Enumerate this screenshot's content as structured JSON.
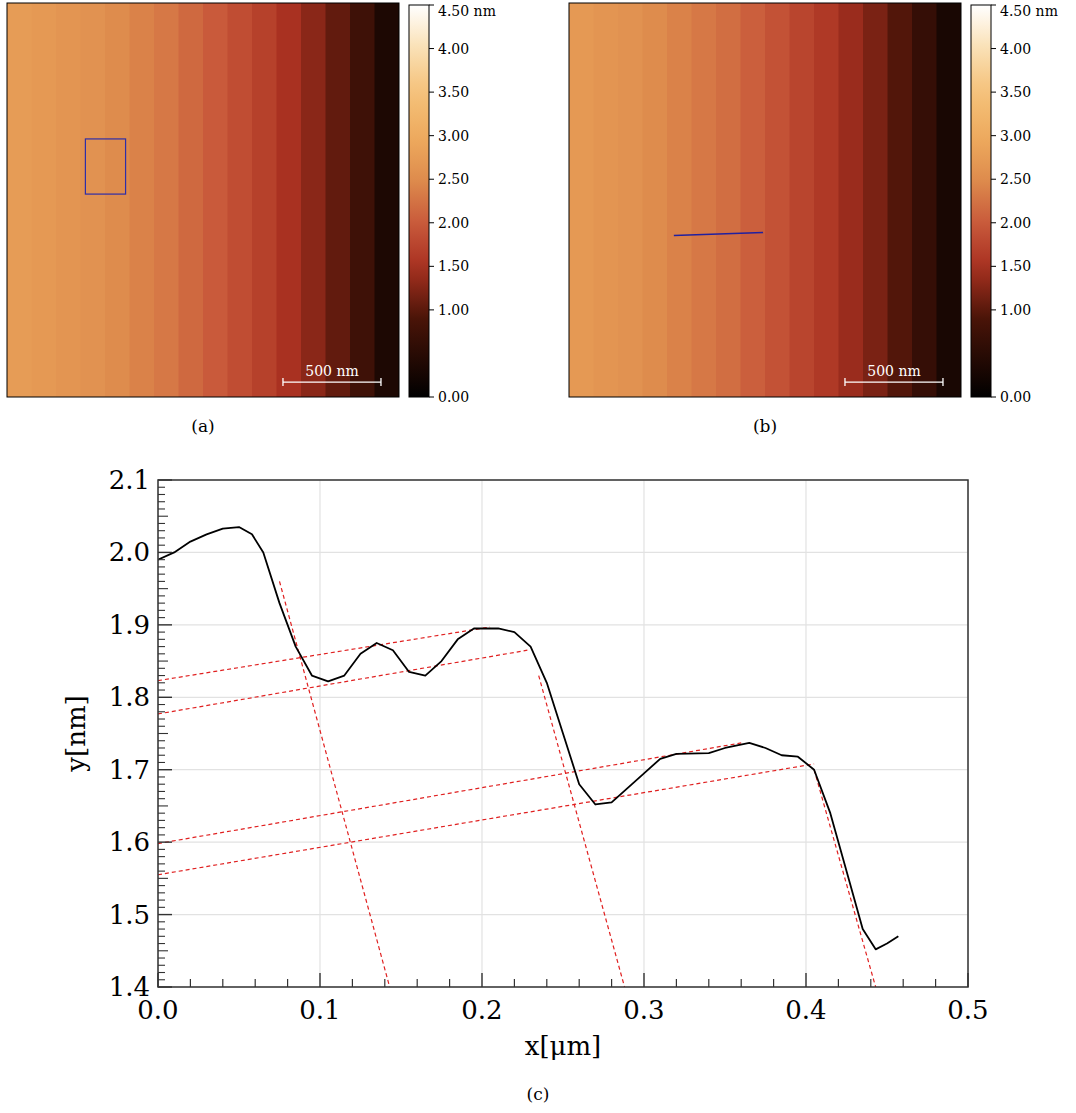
{
  "chart_data": [
    {
      "type": "heatmap",
      "label": "(a)",
      "xlim": [
        0,
        2000
      ],
      "ylim": [
        0,
        2000
      ],
      "cells": [
        [
          2.75,
          2.7,
          2.65,
          2.6,
          2.5,
          2.4,
          2.3,
          2.15,
          2.0,
          1.85,
          1.7,
          1.5,
          1.3,
          1.05,
          0.75,
          0.35
        ]
      ],
      "colorbar": {
        "range": [
          0,
          4.5
        ],
        "ticks": [
          {
            "value": 4.5,
            "label": "4.50 nm"
          },
          {
            "value": 4,
            "label": "4.00"
          },
          {
            "value": 3.5,
            "label": "3.50"
          },
          {
            "value": 3,
            "label": "3.00"
          },
          {
            "value": 2.5,
            "label": "2.50"
          },
          {
            "value": 2,
            "label": "2.00"
          },
          {
            "value": 1.5,
            "label": "1.50"
          },
          {
            "value": 1,
            "label": "1.00"
          },
          {
            "value": 0,
            "label": "0.00"
          }
        ]
      },
      "scale_bar": {
        "value": 500,
        "label": "500 nm"
      },
      "roi": {
        "x": [
          400,
          605
        ],
        "y": [
          690,
          970
        ],
        "color": "#2e2ea8"
      }
    },
    {
      "type": "heatmap",
      "label": "(b)",
      "xlim": [
        0,
        2000
      ],
      "ylim": [
        0,
        2000
      ],
      "cells": [
        [
          2.7,
          2.65,
          2.6,
          2.5,
          2.4,
          2.3,
          2.2,
          2.05,
          1.9,
          1.75,
          1.6,
          1.4,
          1.2,
          0.95,
          0.65,
          0.3
        ]
      ],
      "colorbar": {
        "range": [
          0,
          4.5
        ],
        "ticks": [
          {
            "value": 4.5,
            "label": "4.50 nm"
          },
          {
            "value": 4,
            "label": "4.00"
          },
          {
            "value": 3.5,
            "label": "3.50"
          },
          {
            "value": 3,
            "label": "3.00"
          },
          {
            "value": 2.5,
            "label": "2.50"
          },
          {
            "value": 2,
            "label": "2.00"
          },
          {
            "value": 1.5,
            "label": "1.50"
          },
          {
            "value": 1,
            "label": "1.00"
          },
          {
            "value": 0,
            "label": "0.00"
          }
        ]
      },
      "scale_bar": {
        "value": 500,
        "label": "500 nm"
      },
      "profile_line": {
        "x": [
          535,
          990
        ],
        "y": [
          1180,
          1165
        ],
        "color": "#2020a0"
      }
    },
    {
      "type": "line",
      "label": "(c)",
      "xlabel": "x[μm]",
      "ylabel": "y[nm]",
      "xlim": [
        0,
        0.5
      ],
      "ylim": [
        1.4,
        2.1
      ],
      "xticks": [
        {
          "value": 0,
          "label": "0.0"
        },
        0.1,
        0.2,
        0.3,
        0.4,
        0.5
      ],
      "yticks": [
        1.4,
        1.5,
        1.6,
        1.7,
        1.8,
        1.9,
        {
          "value": 2,
          "label": "2.0"
        },
        2.1
      ],
      "grid": true,
      "series": [
        {
          "color": "#000000",
          "line_style": "solid",
          "x": [
            0,
            0.01,
            0.02,
            0.03,
            0.04,
            0.05,
            0.058,
            0.065,
            0.075,
            0.085,
            0.095,
            0.105,
            0.115,
            0.125,
            0.135,
            0.145,
            0.155,
            0.165,
            0.175,
            0.185,
            0.195,
            0.21,
            0.22,
            0.23,
            0.24,
            0.25,
            0.26,
            0.27,
            0.28,
            0.29,
            0.3,
            0.31,
            0.32,
            0.34,
            0.35,
            0.365,
            0.375,
            0.385,
            0.395,
            0.405,
            0.415,
            0.425,
            0.435,
            0.443,
            0.45,
            0.457
          ],
          "values": [
            1.99,
            2.0,
            2.015,
            2.025,
            2.033,
            2.035,
            2.025,
            2.0,
            1.93,
            1.87,
            1.83,
            1.822,
            1.83,
            1.86,
            1.875,
            1.865,
            1.835,
            1.83,
            1.85,
            1.88,
            1.895,
            1.895,
            1.89,
            1.87,
            1.82,
            1.75,
            1.68,
            1.652,
            1.655,
            1.675,
            1.695,
            1.715,
            1.722,
            1.723,
            1.73,
            1.737,
            1.73,
            1.72,
            1.718,
            1.7,
            1.64,
            1.56,
            1.48,
            1.452,
            1.46,
            1.47
          ]
        },
        {
          "color": "#e02020",
          "line_style": "dashed",
          "x": [
            0,
            0.205
          ],
          "values": [
            1.823,
            1.897
          ]
        },
        {
          "color": "#e02020",
          "line_style": "dashed",
          "x": [
            0,
            0.228
          ],
          "values": [
            1.777,
            1.865
          ]
        },
        {
          "color": "#e02020",
          "line_style": "dashed",
          "x": [
            0,
            0.36
          ],
          "values": [
            1.598,
            1.737
          ]
        },
        {
          "color": "#e02020",
          "line_style": "dashed",
          "x": [
            0,
            0.405
          ],
          "values": [
            1.555,
            1.708
          ]
        },
        {
          "color": "#e02020",
          "line_style": "dashed",
          "x": [
            0.075,
            0.143
          ],
          "values": [
            1.96,
            1.4
          ]
        },
        {
          "color": "#e02020",
          "line_style": "dashed",
          "x": [
            0.235,
            0.288
          ],
          "values": [
            1.83,
            1.4
          ]
        },
        {
          "color": "#e02020",
          "line_style": "dashed",
          "x": [
            0.405,
            0.443
          ],
          "values": [
            1.7,
            1.4
          ]
        }
      ]
    }
  ]
}
